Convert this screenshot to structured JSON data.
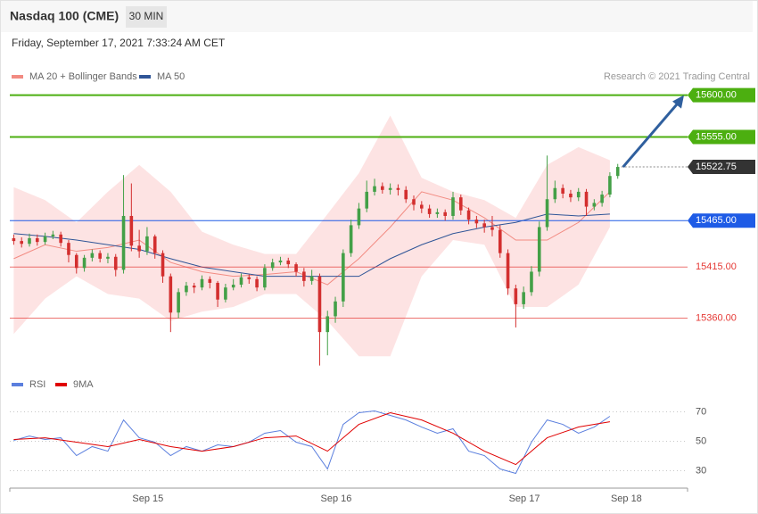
{
  "chart_data": [
    {
      "type": "candlestick",
      "title": "Nasdaq 100 (CME)",
      "timeframe": "30 MIN",
      "timestamp": "Friday, September 17, 2021 7:33:24 AM CET",
      "source": "Research © 2021 Trading Central",
      "legend": [
        {
          "name": "MA 20 + Bollinger Bands",
          "color": "#f28b82"
        },
        {
          "name": "MA 50",
          "color": "#2f5597"
        }
      ],
      "xlim": [
        -0.5,
        85.9
      ],
      "ylim": [
        15300,
        15615
      ],
      "x": [
        0,
        1,
        2,
        3,
        4,
        5,
        6,
        7,
        8,
        9,
        10,
        11,
        12,
        13,
        14,
        15,
        16,
        17,
        18,
        19,
        20,
        21,
        22,
        23,
        24,
        25,
        26,
        27,
        28,
        29,
        30,
        31,
        32,
        33,
        34,
        35,
        36,
        37,
        38,
        39,
        40,
        41,
        42,
        43,
        44,
        45,
        46,
        47,
        48,
        49,
        50,
        51,
        52,
        53,
        54,
        55,
        56,
        57,
        58,
        59,
        60,
        61,
        62,
        63,
        64,
        65,
        66,
        67,
        68,
        69,
        70,
        71,
        72,
        73,
        74,
        75,
        76,
        77
      ],
      "open": [
        15446,
        15443,
        15440,
        15446,
        15442,
        15448,
        15450,
        15441,
        15428,
        15414,
        15425,
        15430,
        15424,
        15426,
        15412,
        15470,
        15438,
        15432,
        15448,
        15430,
        15405,
        15366,
        15388,
        15395,
        15393,
        15402,
        15398,
        15380,
        15393,
        15396,
        15404,
        15402,
        15393,
        15414,
        15420,
        15422,
        15418,
        15410,
        15400,
        15405,
        15345,
        15362,
        15378,
        15430,
        15460,
        15478,
        15496,
        15502,
        15498,
        15500,
        15498,
        15488,
        15482,
        15478,
        15472,
        15474,
        15470,
        15490,
        15476,
        15466,
        15462,
        15458,
        15455,
        15430,
        15392,
        15375,
        15388,
        15410,
        15458,
        15488,
        15500,
        15494,
        15490,
        15496,
        15480,
        15484,
        15493,
        15513
      ],
      "high": [
        15450,
        15447,
        15451,
        15450,
        15452,
        15454,
        15453,
        15444,
        15430,
        15428,
        15434,
        15433,
        15430,
        15429,
        15514,
        15505,
        15455,
        15458,
        15450,
        15433,
        15408,
        15392,
        15399,
        15398,
        15406,
        15405,
        15400,
        15397,
        15402,
        15408,
        15407,
        15405,
        15418,
        15424,
        15426,
        15425,
        15420,
        15414,
        15412,
        15408,
        15368,
        15383,
        15434,
        15466,
        15484,
        15508,
        15510,
        15506,
        15505,
        15504,
        15502,
        15492,
        15486,
        15482,
        15478,
        15477,
        15496,
        15493,
        15479,
        15470,
        15466,
        15470,
        15460,
        15434,
        15396,
        15394,
        15416,
        15464,
        15535,
        15508,
        15504,
        15498,
        15500,
        15499,
        15488,
        15497,
        15517,
        15526
      ],
      "low": [
        15439,
        15436,
        15437,
        15438,
        15439,
        15445,
        15437,
        15420,
        15408,
        15410,
        15421,
        15420,
        15419,
        15405,
        15408,
        15432,
        15425,
        15428,
        15424,
        15398,
        15345,
        15360,
        15384,
        15387,
        15390,
        15392,
        15372,
        15377,
        15390,
        15393,
        15397,
        15389,
        15390,
        15411,
        15417,
        15414,
        15405,
        15394,
        15396,
        15309,
        15320,
        15355,
        15372,
        15426,
        15456,
        15474,
        15492,
        15494,
        15493,
        15492,
        15484,
        15476,
        15473,
        15468,
        15468,
        15465,
        15466,
        15471,
        15461,
        15457,
        15452,
        15448,
        15425,
        15385,
        15350,
        15370,
        15384,
        15405,
        15454,
        15484,
        15489,
        15485,
        15486,
        15470,
        15476,
        15480,
        15490,
        15510
      ],
      "close": [
        15443,
        15440,
        15446,
        15442,
        15448,
        15450,
        15441,
        15428,
        15414,
        15425,
        15430,
        15424,
        15426,
        15412,
        15470,
        15438,
        15432,
        15448,
        15430,
        15405,
        15366,
        15388,
        15395,
        15393,
        15402,
        15398,
        15380,
        15393,
        15396,
        15404,
        15402,
        15393,
        15414,
        15420,
        15422,
        15418,
        15410,
        15400,
        15405,
        15345,
        15362,
        15378,
        15430,
        15460,
        15478,
        15496,
        15502,
        15498,
        15500,
        15498,
        15488,
        15482,
        15478,
        15472,
        15474,
        15470,
        15490,
        15476,
        15466,
        15462,
        15458,
        15455,
        15430,
        15392,
        15375,
        15388,
        15410,
        15458,
        15488,
        15500,
        15494,
        15490,
        15496,
        15480,
        15484,
        15493,
        15513,
        15522.75
      ],
      "up_color": "#43a047",
      "down_color": "#d32f2f",
      "indicator_x": [
        0,
        4,
        8,
        12,
        16,
        20,
        24,
        28,
        32,
        36,
        40,
        44,
        48,
        52,
        56,
        60,
        64,
        68,
        72,
        76
      ],
      "bb_upper": [
        15501,
        15487,
        15463,
        15496,
        15525,
        15496,
        15453,
        15439,
        15429,
        15429,
        15472,
        15516,
        15578,
        15511,
        15496,
        15487,
        15468,
        15525,
        15544,
        15530
      ],
      "bb_lower": [
        15343,
        15381,
        15405,
        15386,
        15381,
        15357,
        15367,
        15372,
        15386,
        15386,
        15357,
        15319,
        15319,
        15405,
        15444,
        15439,
        15372,
        15372,
        15396,
        15458
      ],
      "ma20": [
        15424,
        15439,
        15432,
        15436,
        15444,
        15420,
        15410,
        15405,
        15407,
        15410,
        15396,
        15424,
        15458,
        15496,
        15487,
        15468,
        15444,
        15444,
        15463,
        15496
      ],
      "ma50": [
        15451,
        15448,
        15444,
        15439,
        15434,
        15424,
        15415,
        15410,
        15405,
        15405,
        15405,
        15405,
        15424,
        15439,
        15451,
        15458,
        15463,
        15472,
        15470,
        15472
      ],
      "band_color": "#fde3e3",
      "levels": [
        {
          "value": 15600,
          "label": "15600.00",
          "color": "#4caf10",
          "tag": true
        },
        {
          "value": 15555,
          "label": "15555.00",
          "color": "#4caf10",
          "tag": true
        },
        {
          "value": 15522.75,
          "color": "#333333",
          "tag": true,
          "dash": true
        },
        {
          "value": 15465,
          "label": "15465.00",
          "color": "#1e5be6",
          "tag": true
        },
        {
          "value": 15415,
          "label": "15415.00",
          "color": "#e53935",
          "tag": false
        },
        {
          "value": 15360,
          "label": "15360.00",
          "color": "#e53935",
          "tag": false
        }
      ],
      "arrow_color": "#2f5f9e"
    },
    {
      "type": "line",
      "xlim": [
        -0.5,
        85.9
      ],
      "ylim": [
        20,
        77
      ],
      "yticks": [
        30,
        50,
        70
      ],
      "xticks": [
        {
          "value": 17.1,
          "label": "Sep 15"
        },
        {
          "value": 41.1,
          "label": "Sep 16"
        },
        {
          "value": 65.1,
          "label": "Sep 17"
        },
        {
          "value": 78.1,
          "label": "Sep 18"
        }
      ],
      "series": [
        {
          "name": "RSI",
          "color": "#5b7fde",
          "x": [
            0,
            2,
            4,
            6,
            8,
            10,
            12,
            14,
            16,
            18,
            20,
            22,
            24,
            26,
            28,
            30,
            32,
            34,
            36,
            38,
            40,
            42,
            44,
            46,
            48,
            50,
            52,
            54,
            56,
            58,
            60,
            62,
            64,
            66,
            68,
            70,
            72,
            74,
            76
          ],
          "values": [
            50.6,
            53.6,
            51.2,
            52.4,
            40.3,
            46.4,
            43.3,
            64.5,
            52.4,
            49.4,
            40.3,
            46.4,
            43.3,
            47.6,
            46.4,
            49.4,
            55.5,
            57.3,
            49.4,
            46.4,
            31.2,
            61.5,
            69.4,
            70.6,
            67.6,
            64.5,
            59.7,
            55.5,
            58.5,
            43.3,
            40.3,
            31.2,
            28.2,
            49.4,
            64.5,
            61.5,
            55.5,
            59.7,
            67
          ]
        },
        {
          "name": "9MA",
          "color": "#e00000",
          "x": [
            0,
            4,
            8,
            12,
            16,
            20,
            24,
            28,
            32,
            36,
            40,
            44,
            48,
            52,
            56,
            60,
            64,
            68,
            72,
            76
          ],
          "values": [
            51.2,
            52.4,
            49.4,
            46.4,
            51.2,
            46.4,
            43.3,
            46.4,
            52.4,
            53.6,
            43.3,
            61.5,
            69.4,
            64.5,
            55.5,
            43.3,
            34.2,
            52.4,
            59.7,
            63.3
          ]
        }
      ]
    }
  ]
}
